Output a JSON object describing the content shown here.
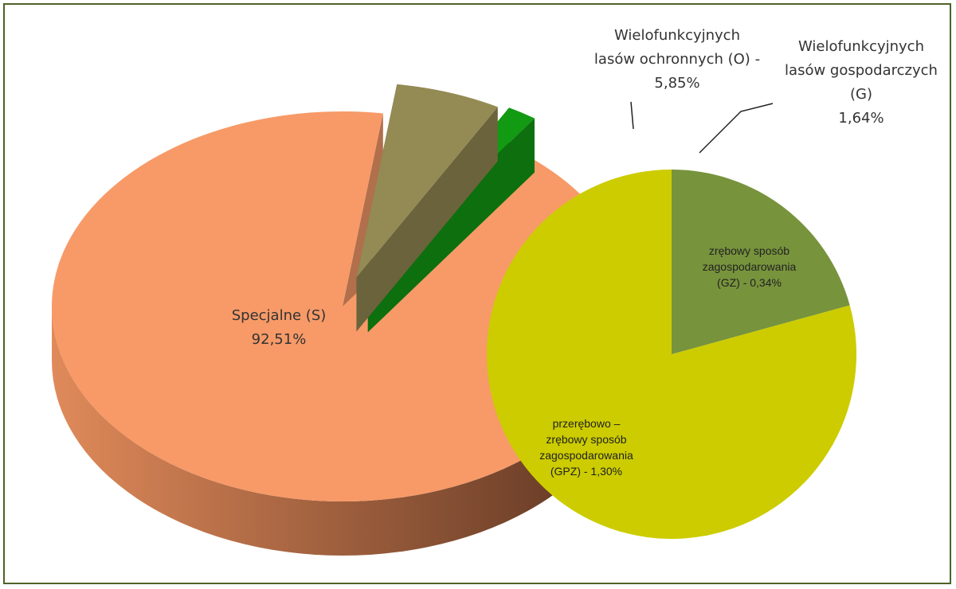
{
  "chart_data": [
    {
      "type": "pie",
      "three_d": true,
      "categories": [
        "Specjalne (S)",
        "Wielofunkcyjnych lasów ochronnych (O)",
        "Wielofunkcyjnych lasów gospodarczych (G)"
      ],
      "values": [
        92.51,
        5.85,
        1.64
      ],
      "value_labels": [
        "92,51%",
        "- 5,85%",
        "1,64%"
      ],
      "colors": [
        "#f79a68",
        "#948a54",
        "#129a12"
      ]
    },
    {
      "type": "pie",
      "categories": [
        "zrębowy sposób zagospodarowania (GZ)",
        "przerębowo – zrębowy sposób zagospodarowania (GPZ)"
      ],
      "values": [
        0.34,
        1.3
      ],
      "value_labels": [
        "- 0,34%",
        "- 1,30%"
      ],
      "colors": [
        "#77933c",
        "#cccc00"
      ]
    }
  ]
}
